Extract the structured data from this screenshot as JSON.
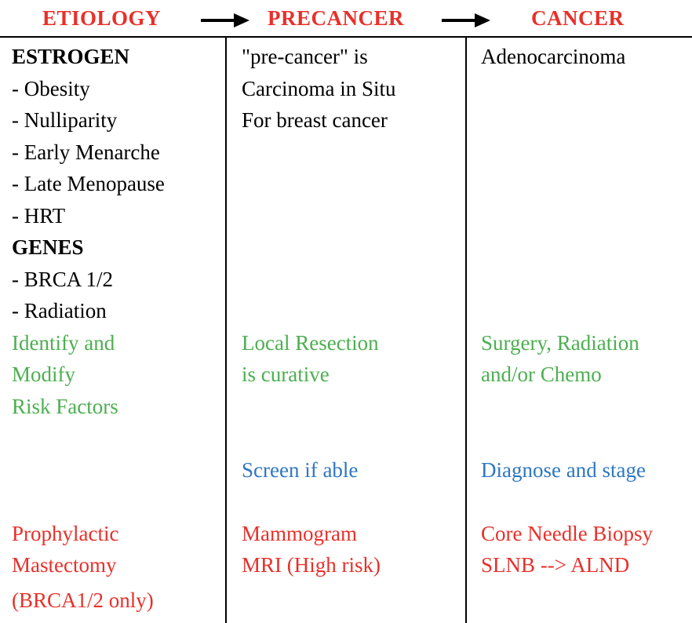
{
  "colors": {
    "red": "#e8302a",
    "green": "#4caf50",
    "blue": "#2f77c2",
    "black": "#000000"
  },
  "header": {
    "etiology": "ETIOLOGY",
    "precancer": "PRECANCER",
    "cancer": "CANCER"
  },
  "etiology": {
    "lines": [
      {
        "text": "ESTROGEN",
        "bold": true
      },
      {
        "text": "- Obesity"
      },
      {
        "text": "- Nulliparity"
      },
      {
        "text": "- Early Menarche"
      },
      {
        "text": "- Late Menopause"
      },
      {
        "text": "- HRT"
      },
      {
        "text": "GENES",
        "bold": true
      },
      {
        "text": "- BRCA 1/2"
      },
      {
        "text": "- Radiation"
      }
    ],
    "management": [
      "Identify and",
      "Modify",
      "Risk Factors"
    ],
    "screening": [],
    "procedures": [
      "Prophylactic",
      "Mastectomy",
      "(BRCA1/2 only)"
    ]
  },
  "precancer": {
    "lines": [
      "\"pre-cancer\" is",
      "Carcinoma in Situ",
      "For breast cancer"
    ],
    "management": [
      "Local Resection",
      "is curative"
    ],
    "screening": [
      "Screen if able"
    ],
    "procedures": [
      "Mammogram",
      "MRI (High risk)"
    ]
  },
  "cancer": {
    "lines": [
      "Adenocarcinoma"
    ],
    "management": [
      "Surgery, Radiation",
      "and/or Chemo"
    ],
    "screening": [
      "Diagnose and stage"
    ],
    "procedures": [
      "Core Needle Biopsy",
      "SLNB --> ALND"
    ]
  }
}
